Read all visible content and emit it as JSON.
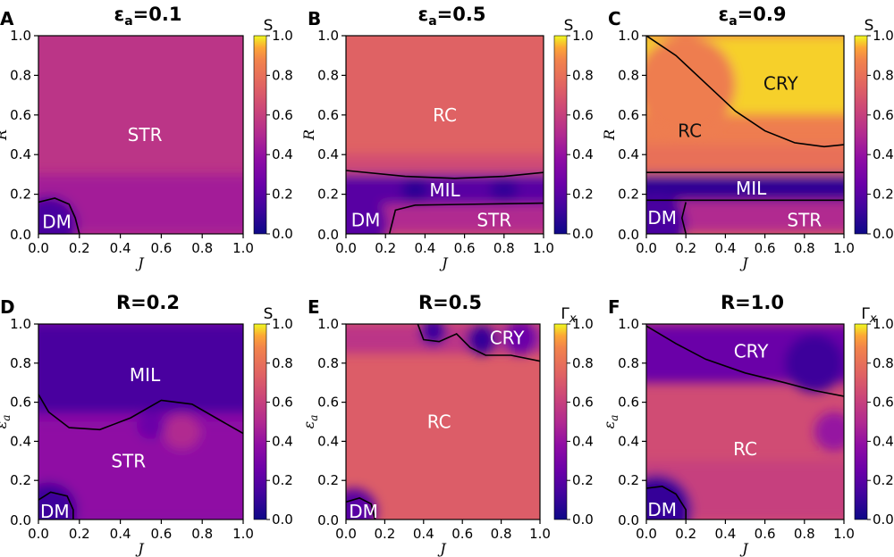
{
  "chart_data": [
    {
      "id": "A",
      "type": "heatmap",
      "title_main": "ε",
      "title_sub": "a",
      "title_rest": "=0.1",
      "xlabel": "J",
      "ylabel": "R",
      "xlim": [
        0,
        1
      ],
      "ylim": [
        0,
        1
      ],
      "xticks": [
        "0.0",
        "0.2",
        "0.4",
        "0.6",
        "0.8",
        "1.0"
      ],
      "yticks": [
        "0.2",
        "0.4",
        "0.6",
        "0.8",
        "1.0"
      ],
      "colorbar": {
        "label": "S",
        "min": 0,
        "max": 1,
        "ticks": [
          "0.0",
          "0.2",
          "0.4",
          "0.6",
          "0.8",
          "1.0"
        ]
      },
      "base_value": 0.55,
      "bands": [
        {
          "y0": 0.0,
          "y1": 0.3,
          "value": 0.45
        }
      ],
      "blobs": [
        {
          "x": 0.05,
          "y": 0.05,
          "r": 0.14,
          "value": 0.15
        }
      ],
      "regions": [
        {
          "label": "STR",
          "x": 0.52,
          "y": 0.5,
          "dark": false
        },
        {
          "label": "DM",
          "x": 0.09,
          "y": 0.06,
          "dark": false
        }
      ],
      "boundaries": [
        [
          [
            0.0,
            0.16
          ],
          [
            0.08,
            0.18
          ],
          [
            0.15,
            0.15
          ],
          [
            0.18,
            0.08
          ],
          [
            0.2,
            0.0
          ]
        ]
      ]
    },
    {
      "id": "B",
      "type": "heatmap",
      "title_main": "ε",
      "title_sub": "a",
      "title_rest": "=0.5",
      "xlabel": "J",
      "ylabel": "R",
      "xlim": [
        0,
        1
      ],
      "ylim": [
        0,
        1
      ],
      "xticks": [
        "0.0",
        "0.2",
        "0.4",
        "0.6",
        "0.8",
        "1.0"
      ],
      "yticks": [
        "0.2",
        "0.4",
        "0.6",
        "0.8",
        "1.0"
      ],
      "colorbar": {
        "label": "S",
        "min": 0,
        "max": 1,
        "ticks": [
          "0.0",
          "0.2",
          "0.4",
          "0.6",
          "0.8",
          "1.0"
        ]
      },
      "base_value": 0.74,
      "bands": [
        {
          "y0": 0.29,
          "y1": 0.4,
          "value": 0.65
        },
        {
          "y0": 0.15,
          "y1": 0.3,
          "value": 0.2
        },
        {
          "y0": 0.0,
          "y1": 0.15,
          "value": 0.5
        }
      ],
      "blobs": [
        {
          "x": 0.05,
          "y": 0.05,
          "r": 0.16,
          "value": 0.2
        },
        {
          "x": 0.35,
          "y": 0.22,
          "r": 0.07,
          "value": 0.08
        },
        {
          "x": 0.8,
          "y": 0.22,
          "r": 0.07,
          "value": 0.1
        }
      ],
      "regions": [
        {
          "label": "RC",
          "x": 0.5,
          "y": 0.6,
          "dark": false
        },
        {
          "label": "MIL",
          "x": 0.5,
          "y": 0.22,
          "dark": false
        },
        {
          "label": "DM",
          "x": 0.1,
          "y": 0.07,
          "dark": false
        },
        {
          "label": "STR",
          "x": 0.75,
          "y": 0.07,
          "dark": false
        }
      ],
      "boundaries": [
        [
          [
            0.0,
            0.32
          ],
          [
            0.3,
            0.29
          ],
          [
            0.55,
            0.28
          ],
          [
            0.8,
            0.29
          ],
          [
            1.0,
            0.31
          ]
        ],
        [
          [
            0.22,
            0.0
          ],
          [
            0.25,
            0.12
          ],
          [
            0.35,
            0.145
          ],
          [
            1.0,
            0.155
          ]
        ]
      ]
    },
    {
      "id": "C",
      "type": "heatmap",
      "title_main": "ε",
      "title_sub": "a",
      "title_rest": "=0.9",
      "xlabel": "J",
      "ylabel": "R",
      "xlim": [
        0,
        1
      ],
      "ylim": [
        0,
        1
      ],
      "xticks": [
        "0.0",
        "0.2",
        "0.4",
        "0.6",
        "0.8",
        "1.0"
      ],
      "yticks": [
        "0.2",
        "0.4",
        "0.6",
        "0.8",
        "1.0"
      ],
      "colorbar": {
        "label": "S",
        "min": 0,
        "max": 1,
        "ticks": [
          "0.0",
          "0.2",
          "0.4",
          "0.6",
          "0.8",
          "1.0"
        ]
      },
      "base_value": 0.85,
      "bands": [
        {
          "y0": 0.6,
          "y1": 1.0,
          "value": 0.97
        },
        {
          "y0": 0.3,
          "y1": 0.45,
          "value": 0.8
        },
        {
          "y0": 0.17,
          "y1": 0.3,
          "value": 0.08
        },
        {
          "y0": 0.0,
          "y1": 0.17,
          "value": 0.5
        }
      ],
      "blobs": [
        {
          "x": 0.05,
          "y": 0.05,
          "r": 0.15,
          "value": 0.15
        },
        {
          "x": 0.2,
          "y": 0.75,
          "r": 0.25,
          "value": 0.85
        }
      ],
      "regions": [
        {
          "label": "CRY",
          "x": 0.68,
          "y": 0.76,
          "dark": true
        },
        {
          "label": "RC",
          "x": 0.22,
          "y": 0.52,
          "dark": true
        },
        {
          "label": "MIL",
          "x": 0.53,
          "y": 0.23,
          "dark": false
        },
        {
          "label": "DM",
          "x": 0.08,
          "y": 0.08,
          "dark": false
        },
        {
          "label": "STR",
          "x": 0.8,
          "y": 0.07,
          "dark": false
        }
      ],
      "boundaries": [
        [
          [
            0.0,
            1.0
          ],
          [
            0.15,
            0.9
          ],
          [
            0.3,
            0.76
          ],
          [
            0.45,
            0.62
          ],
          [
            0.6,
            0.52
          ],
          [
            0.75,
            0.46
          ],
          [
            0.9,
            0.44
          ],
          [
            1.0,
            0.45
          ]
        ],
        [
          [
            0.0,
            0.31
          ],
          [
            1.0,
            0.31
          ]
        ],
        [
          [
            0.0,
            0.17
          ],
          [
            1.0,
            0.17
          ]
        ],
        [
          [
            0.2,
            0.0
          ],
          [
            0.18,
            0.08
          ],
          [
            0.2,
            0.16
          ]
        ]
      ]
    },
    {
      "id": "D",
      "type": "heatmap",
      "title_main": "R=0.2",
      "title_sub": "",
      "title_rest": "",
      "xlabel": "J",
      "ylabel": "ε",
      "ylabel_sub": "a",
      "xlim": [
        0,
        1
      ],
      "ylim": [
        0,
        1
      ],
      "xticks": [
        "0.0",
        "0.2",
        "0.4",
        "0.6",
        "0.8",
        "1.0"
      ],
      "yticks": [
        "0.2",
        "0.4",
        "0.6",
        "0.8",
        "1.0"
      ],
      "colorbar": {
        "label": "S",
        "min": 0,
        "max": 1,
        "ticks": [
          "0.0",
          "0.2",
          "0.4",
          "0.6",
          "0.8",
          "1.0"
        ]
      },
      "base_value": 0.35,
      "bands": [
        {
          "y0": 0.55,
          "y1": 1.0,
          "value": 0.15
        },
        {
          "y0": 0.0,
          "y1": 0.5,
          "value": 0.38
        }
      ],
      "blobs": [
        {
          "x": 0.05,
          "y": 0.05,
          "r": 0.14,
          "value": 0.12
        },
        {
          "x": 0.7,
          "y": 0.45,
          "r": 0.09,
          "value": 0.5
        },
        {
          "x": 0.55,
          "y": 0.48,
          "r": 0.07,
          "value": 0.25
        }
      ],
      "regions": [
        {
          "label": "MIL",
          "x": 0.52,
          "y": 0.74,
          "dark": false
        },
        {
          "label": "STR",
          "x": 0.44,
          "y": 0.3,
          "dark": false
        },
        {
          "label": "DM",
          "x": 0.08,
          "y": 0.04,
          "dark": false
        }
      ],
      "boundaries": [
        [
          [
            0.0,
            0.64
          ],
          [
            0.05,
            0.55
          ],
          [
            0.15,
            0.47
          ],
          [
            0.3,
            0.46
          ],
          [
            0.45,
            0.52
          ],
          [
            0.6,
            0.61
          ],
          [
            0.75,
            0.59
          ],
          [
            0.9,
            0.5
          ],
          [
            1.0,
            0.44
          ]
        ],
        [
          [
            0.0,
            0.1
          ],
          [
            0.06,
            0.14
          ],
          [
            0.14,
            0.12
          ],
          [
            0.17,
            0.05
          ],
          [
            0.17,
            0.0
          ]
        ]
      ]
    },
    {
      "id": "E",
      "type": "heatmap",
      "title_main": "R=0.5",
      "title_sub": "",
      "title_rest": "",
      "xlabel": "J",
      "ylabel": "ε",
      "ylabel_sub": "a",
      "xlim": [
        0,
        1
      ],
      "ylim": [
        0,
        1
      ],
      "xticks": [
        "0.0",
        "0.2",
        "0.4",
        "0.6",
        "0.8",
        "1.0"
      ],
      "yticks": [
        "0.2",
        "0.4",
        "0.6",
        "0.8",
        "1.0"
      ],
      "colorbar": {
        "label": "Γ",
        "label_sub": "x",
        "min": 0,
        "max": 1,
        "ticks": [
          "0.0",
          "0.2",
          "0.4",
          "0.6",
          "0.8",
          "1.0"
        ]
      },
      "base_value": 0.72,
      "bands": [
        {
          "y0": 0.85,
          "y1": 1.0,
          "value": 0.55
        }
      ],
      "blobs": [
        {
          "x": 0.04,
          "y": 0.04,
          "r": 0.12,
          "value": 0.2
        },
        {
          "x": 0.45,
          "y": 0.96,
          "r": 0.07,
          "value": 0.12
        },
        {
          "x": 0.7,
          "y": 0.92,
          "r": 0.08,
          "value": 0.1
        },
        {
          "x": 0.9,
          "y": 0.93,
          "r": 0.09,
          "value": 0.25
        }
      ],
      "regions": [
        {
          "label": "RC",
          "x": 0.48,
          "y": 0.5,
          "dark": false
        },
        {
          "label": "CRY",
          "x": 0.83,
          "y": 0.93,
          "dark": false
        },
        {
          "label": "DM",
          "x": 0.09,
          "y": 0.04,
          "dark": false
        }
      ],
      "boundaries": [
        [
          [
            0.37,
            1.0
          ],
          [
            0.4,
            0.92
          ],
          [
            0.48,
            0.91
          ],
          [
            0.57,
            0.95
          ],
          [
            0.64,
            0.88
          ],
          [
            0.72,
            0.84
          ],
          [
            0.85,
            0.84
          ],
          [
            1.0,
            0.81
          ]
        ],
        [
          [
            0.0,
            0.09
          ],
          [
            0.07,
            0.11
          ],
          [
            0.13,
            0.08
          ],
          [
            0.15,
            0.0
          ]
        ]
      ]
    },
    {
      "id": "F",
      "type": "heatmap",
      "title_main": "R=1.0",
      "title_sub": "",
      "title_rest": "",
      "xlabel": "J",
      "ylabel": "ε",
      "ylabel_sub": "a",
      "xlim": [
        0,
        1
      ],
      "ylim": [
        0,
        1
      ],
      "xticks": [
        "0.0",
        "0.2",
        "0.4",
        "0.6",
        "0.8",
        "1.0"
      ],
      "yticks": [
        "0.2",
        "0.4",
        "0.6",
        "0.8",
        "1.0"
      ],
      "colorbar": {
        "label": "Γ",
        "label_sub": "x",
        "min": 0,
        "max": 1,
        "ticks": [
          "0.0",
          "0.2",
          "0.4",
          "0.6",
          "0.8",
          "1.0"
        ]
      },
      "base_value": 0.65,
      "bands": [
        {
          "y0": 0.7,
          "y1": 1.0,
          "value": 0.25
        },
        {
          "y0": 0.0,
          "y1": 0.3,
          "value": 0.6
        }
      ],
      "blobs": [
        {
          "x": 0.05,
          "y": 0.05,
          "r": 0.18,
          "value": 0.1
        },
        {
          "x": 0.85,
          "y": 0.8,
          "r": 0.15,
          "value": 0.12
        },
        {
          "x": 0.95,
          "y": 0.45,
          "r": 0.1,
          "value": 0.4
        }
      ],
      "regions": [
        {
          "label": "CRY",
          "x": 0.53,
          "y": 0.86,
          "dark": false
        },
        {
          "label": "RC",
          "x": 0.5,
          "y": 0.36,
          "dark": false
        },
        {
          "label": "DM",
          "x": 0.08,
          "y": 0.05,
          "dark": false
        }
      ],
      "boundaries": [
        [
          [
            0.0,
            0.99
          ],
          [
            0.15,
            0.9
          ],
          [
            0.3,
            0.82
          ],
          [
            0.5,
            0.75
          ],
          [
            0.7,
            0.7
          ],
          [
            0.85,
            0.66
          ],
          [
            1.0,
            0.63
          ]
        ],
        [
          [
            0.0,
            0.16
          ],
          [
            0.08,
            0.17
          ],
          [
            0.15,
            0.13
          ],
          [
            0.2,
            0.05
          ],
          [
            0.2,
            0.0
          ]
        ]
      ]
    }
  ]
}
